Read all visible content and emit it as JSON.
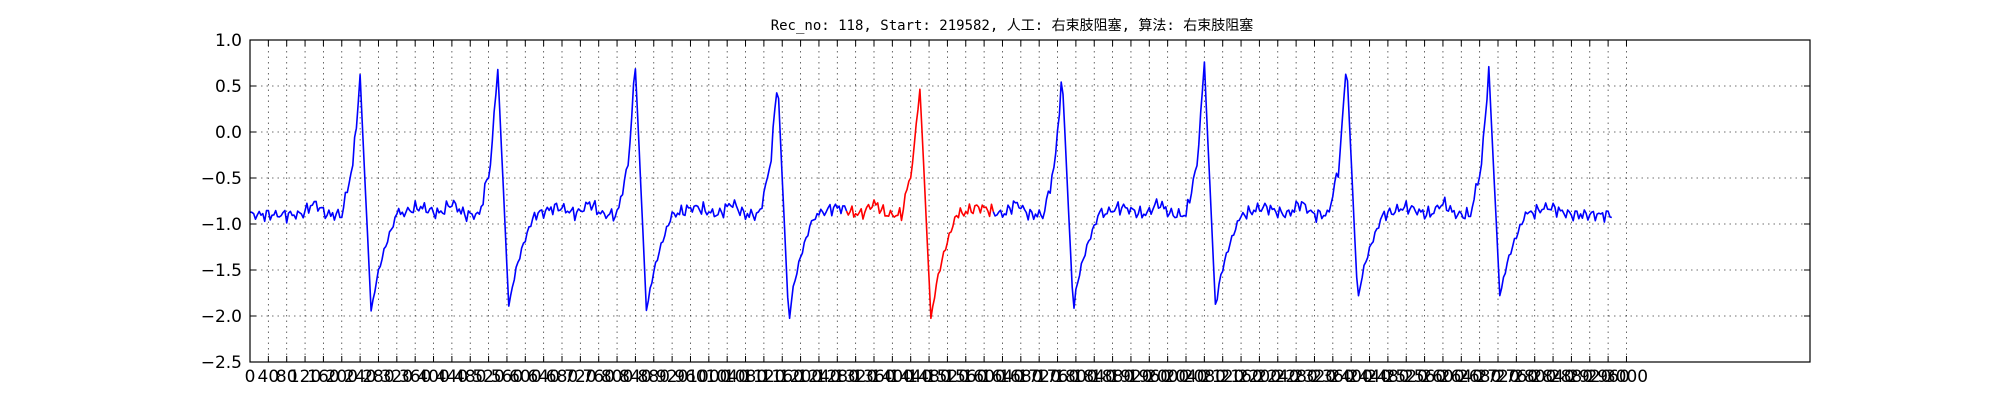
{
  "chart_data": {
    "type": "line",
    "title": "Rec_no: 118, Start: 219582, 人工: 右束肢阻塞, 算法: 右束肢阻塞",
    "xlabel": "",
    "ylabel": "",
    "xlim": [
      0,
      3400
    ],
    "ylim": [
      -2.5,
      1.0
    ],
    "grid": true,
    "yticks": [
      1.0,
      0.5,
      0.0,
      -0.5,
      -1.0,
      -1.5,
      -2.0,
      -2.5
    ],
    "ytick_labels": [
      "1.0",
      "0.5",
      "0.0",
      "−0.5",
      "−1.0",
      "−1.5",
      "−2.0",
      "−2.5"
    ],
    "xticks": [
      0,
      40,
      80,
      120,
      160,
      200,
      240,
      280,
      320,
      360,
      400,
      440,
      480,
      520,
      560,
      600,
      640,
      680,
      720,
      760,
      800,
      840,
      880,
      920,
      960,
      1000,
      1040,
      1080,
      1120,
      1160,
      1200,
      1240,
      1280,
      1320,
      1360,
      1400,
      1440,
      1480,
      1520,
      1560,
      1600,
      1640,
      1680,
      1720,
      1760,
      1800,
      1840,
      1880,
      1920,
      1960,
      2000,
      2040,
      2080,
      2120,
      2160,
      2200,
      2240,
      2280,
      2320,
      2360,
      2400,
      2440,
      2480,
      2520,
      2560,
      2600,
      2640,
      2680,
      2720,
      2760,
      2800,
      2840,
      2880,
      2920,
      2960,
      3000
    ],
    "sample_step": 4,
    "baseline": -0.9,
    "beats": [
      {
        "r": 240,
        "peak": 0.58,
        "trough": -2.05
      },
      {
        "r": 540,
        "peak": 0.7,
        "trough": -2.0
      },
      {
        "r": 840,
        "peak": 0.72,
        "trough": -2.05
      },
      {
        "r": 1150,
        "peak": 0.58,
        "trough": -2.12
      },
      {
        "r": 1460,
        "peak": 0.5,
        "trough": -2.13
      },
      {
        "r": 1770,
        "peak": 0.62,
        "trough": -2.0
      },
      {
        "r": 2080,
        "peak": 0.73,
        "trough": -1.98
      },
      {
        "r": 2390,
        "peak": 0.77,
        "trough": -1.9
      },
      {
        "r": 2700,
        "peak": 0.67,
        "trough": -1.88
      }
    ],
    "series": [
      {
        "color": "#0000ff",
        "x_range": [
          0,
          1300
        ]
      },
      {
        "color": "#ff0000",
        "x_range": [
          1300,
          1620
        ]
      },
      {
        "color": "#0000ff",
        "x_range": [
          1620,
          2970
        ]
      }
    ]
  }
}
